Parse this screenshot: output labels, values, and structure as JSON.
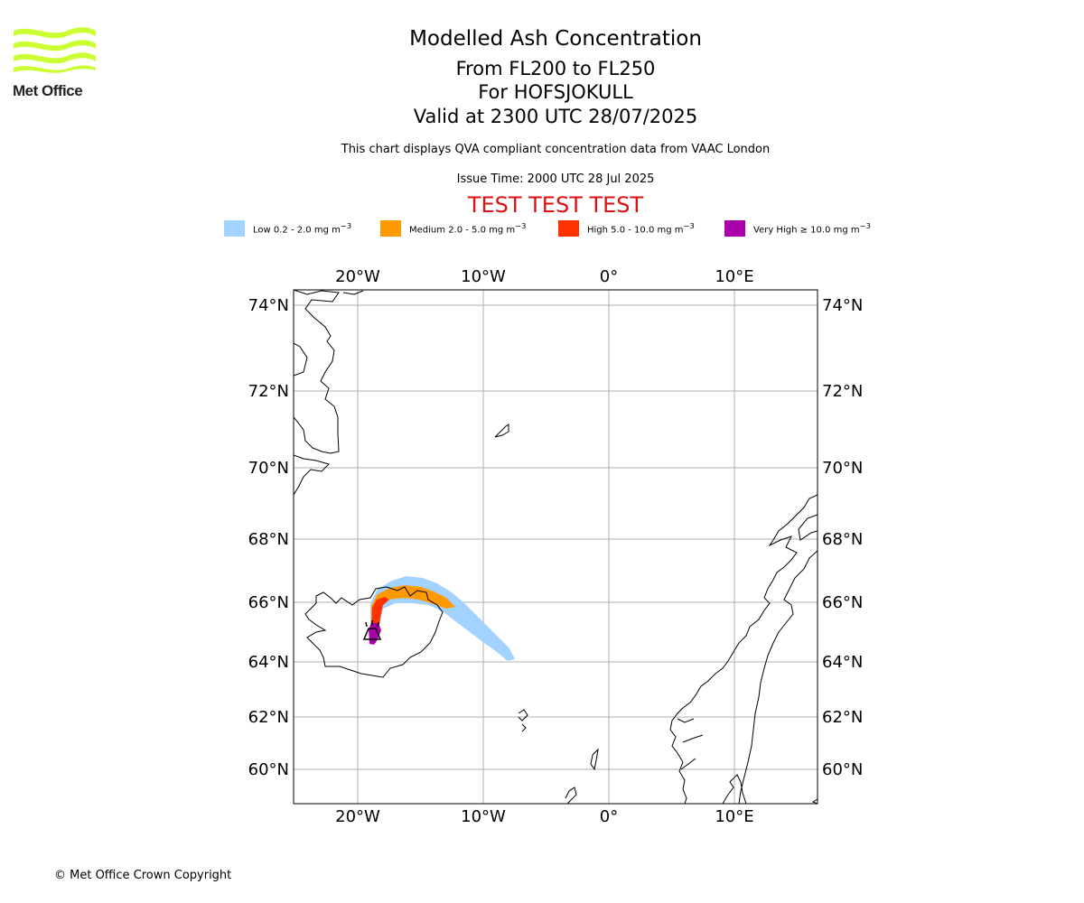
{
  "logo": {
    "text": "Met Office",
    "color": "#ccff33"
  },
  "header": {
    "title": "Modelled Ash Concentration",
    "levels": "From FL200 to FL250",
    "volcano": "For HOFSJOKULL",
    "valid": "Valid at 2300 UTC 28/07/2025",
    "note": "This chart displays QVA compliant concentration data from VAAC London",
    "issue": "Issue Time: 2000 UTC 28 Jul 2025",
    "test_banner": "TEST TEST TEST"
  },
  "legend": [
    {
      "name": "Low",
      "range": "0.2 - 2.0 mg m",
      "color": "#a2d2ff"
    },
    {
      "name": "Medium",
      "range": "2.0 - 5.0 mg m",
      "color": "#ff9900"
    },
    {
      "name": "High",
      "range": "5.0 - 10.0 mg m",
      "color": "#ff3300"
    },
    {
      "name": "Very High",
      "range": "≥ 10.0 mg m",
      "color": "#aa00aa"
    }
  ],
  "legend_unit_exponent": "−3",
  "map": {
    "lon_labels": [
      "20°W",
      "10°W",
      "0°",
      "10°E"
    ],
    "lat_labels": [
      "74°N",
      "72°N",
      "70°N",
      "68°N",
      "66°N",
      "64°N",
      "62°N",
      "60°N"
    ],
    "volcano_icon": "volcano-icon"
  },
  "footer": {
    "copyright": "© Met Office Crown Copyright"
  }
}
